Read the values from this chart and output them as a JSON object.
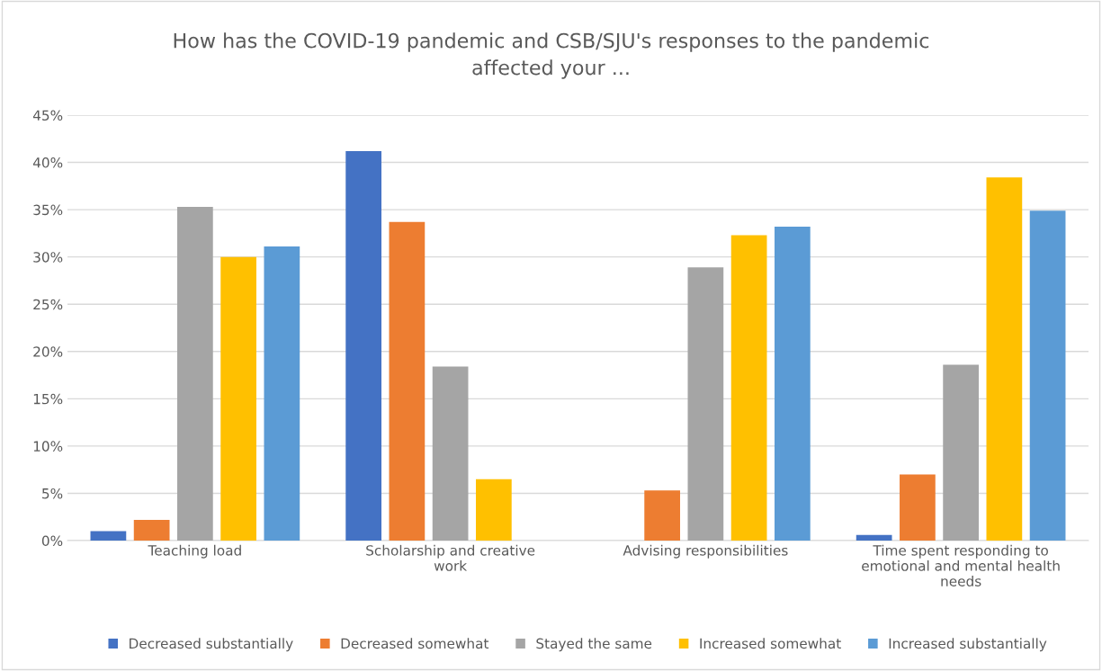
{
  "chart_data": {
    "type": "bar",
    "title": "How has the COVID-19 pandemic and CSB/SJU's responses to the pandemic affected your ...",
    "categories": [
      "Teaching load",
      "Scholarship and creative work",
      "Advising responsibilities",
      "Time spent responding to emotional and mental health needs"
    ],
    "series": [
      {
        "name": "Decreased substantially",
        "color": "#4472c4",
        "values": [
          1.0,
          41.2,
          0,
          0.6
        ]
      },
      {
        "name": "Decreased somewhat",
        "color": "#ed7d31",
        "values": [
          2.2,
          33.7,
          5.3,
          7.0
        ]
      },
      {
        "name": "Stayed the same",
        "color": "#a5a5a5",
        "values": [
          35.3,
          18.4,
          28.9,
          18.6
        ]
      },
      {
        "name": "Increased somewhat",
        "color": "#ffc000",
        "values": [
          30.0,
          6.5,
          32.3,
          38.4
        ]
      },
      {
        "name": "Increased substantially",
        "color": "#5b9bd5",
        "values": [
          31.1,
          0,
          33.2,
          34.9
        ]
      }
    ],
    "ylim": [
      0,
      45
    ],
    "yticks": [
      {
        "value": 0,
        "label": "0%"
      },
      {
        "value": 5,
        "label": "5%"
      },
      {
        "value": 10,
        "label": "10%"
      },
      {
        "value": 15,
        "label": "15%"
      },
      {
        "value": 20,
        "label": "20%"
      },
      {
        "value": 25,
        "label": "25%"
      },
      {
        "value": 30,
        "label": "30%"
      },
      {
        "value": 35,
        "label": "35%"
      },
      {
        "value": 40,
        "label": "40%"
      },
      {
        "value": 45,
        "label": "45%"
      }
    ],
    "grid": "y",
    "legend": "bottom"
  }
}
